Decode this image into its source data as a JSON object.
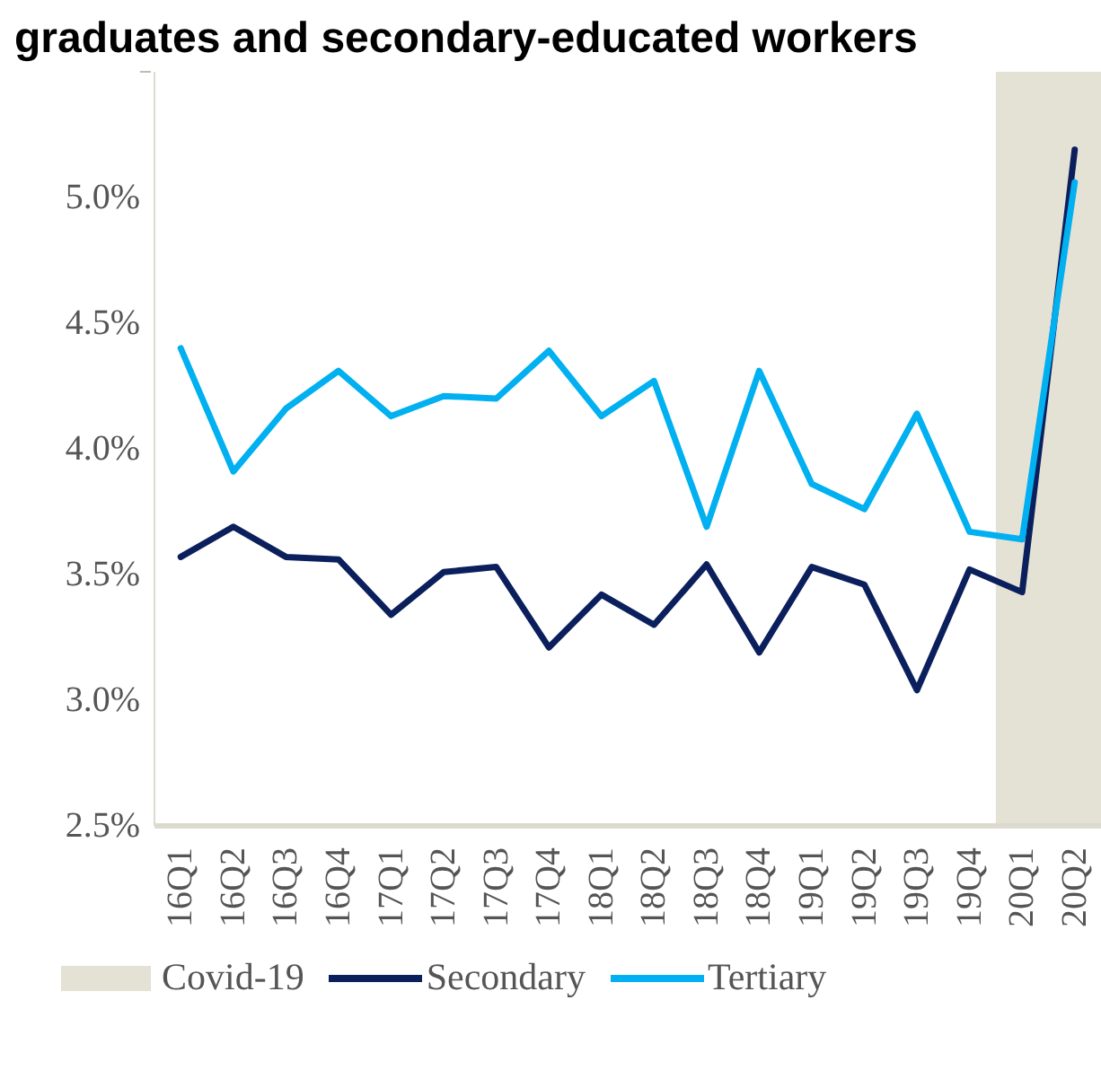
{
  "chart_data": {
    "type": "line",
    "title": "graduates and secondary-educated workers",
    "categories": [
      "16Q1",
      "16Q2",
      "16Q3",
      "16Q4",
      "17Q1",
      "17Q2",
      "17Q3",
      "17Q4",
      "18Q1",
      "18Q2",
      "18Q3",
      "18Q4",
      "19Q1",
      "19Q2",
      "19Q3",
      "19Q4",
      "20Q1",
      "20Q2"
    ],
    "series": [
      {
        "name": "Secondary",
        "color": "#0a1f5c",
        "values": [
          3.57,
          3.69,
          3.57,
          3.56,
          3.34,
          3.51,
          3.53,
          3.21,
          3.42,
          3.3,
          3.54,
          3.19,
          3.53,
          3.46,
          3.04,
          3.52,
          3.43,
          5.19
        ]
      },
      {
        "name": "Tertiary",
        "color": "#00b0f0",
        "values": [
          4.4,
          3.91,
          4.16,
          4.31,
          4.13,
          4.21,
          4.2,
          4.39,
          4.13,
          4.27,
          3.69,
          4.31,
          3.86,
          3.76,
          4.14,
          3.67,
          3.64,
          5.06
        ]
      }
    ],
    "bands": [
      {
        "axis": "x",
        "from": "20Q1",
        "to": "20Q2",
        "label": "Covid-19",
        "color": "#e4e1d5"
      }
    ],
    "ylim": [
      2.5,
      5.5
    ],
    "yticks": [
      {
        "value": 2.5,
        "label": "2.5%"
      },
      {
        "value": 3.0,
        "label": "3.0%"
      },
      {
        "value": 3.5,
        "label": "3.5%"
      },
      {
        "value": 4.0,
        "label": "4.0%"
      },
      {
        "value": 4.5,
        "label": "4.5%"
      },
      {
        "value": 5.0,
        "label": "5.0%"
      },
      {
        "value": 5.5,
        "label": null
      }
    ],
    "grid": false,
    "legend": "bottom",
    "marker": "none",
    "line_style": "solid"
  }
}
